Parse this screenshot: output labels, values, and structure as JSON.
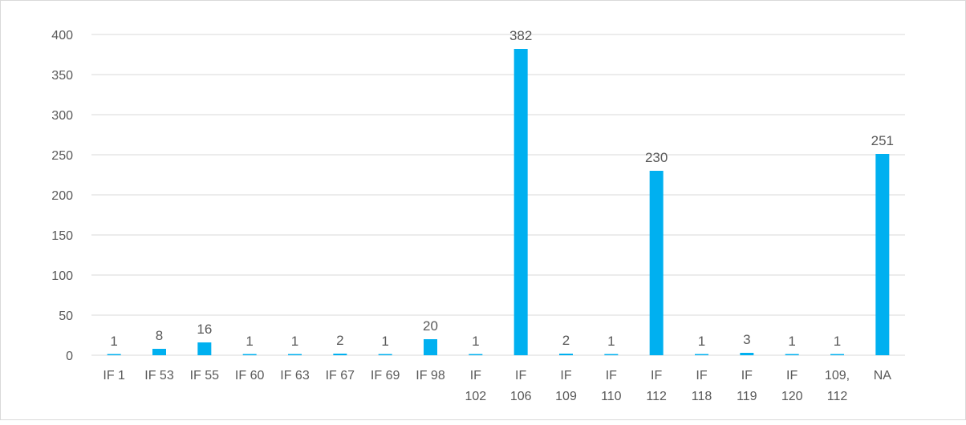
{
  "chart_data": {
    "type": "bar",
    "title": "",
    "xlabel": "",
    "ylabel": "",
    "ylim": [
      0,
      400
    ],
    "yticks": [
      "0",
      "50",
      "100",
      "150",
      "200",
      "250",
      "300",
      "350",
      "400"
    ],
    "grid": true,
    "legend": "none",
    "bar_color": "#00B0F0",
    "categories": [
      [
        "IF 1"
      ],
      [
        "IF 53"
      ],
      [
        "IF 55"
      ],
      [
        "IF 60"
      ],
      [
        "IF 63"
      ],
      [
        "IF 67"
      ],
      [
        "IF 69"
      ],
      [
        "IF 98"
      ],
      [
        "IF",
        "102"
      ],
      [
        "IF",
        "106"
      ],
      [
        "IF",
        "109"
      ],
      [
        "IF",
        "110"
      ],
      [
        "IF",
        "112"
      ],
      [
        "IF",
        "118"
      ],
      [
        "IF",
        "119"
      ],
      [
        "IF",
        "120"
      ],
      [
        "109,",
        "112"
      ],
      [
        "NA"
      ]
    ],
    "values": [
      1,
      8,
      16,
      1,
      1,
      2,
      1,
      20,
      1,
      382,
      2,
      1,
      230,
      1,
      3,
      1,
      1,
      251
    ],
    "data_labels": [
      "1",
      "8",
      "16",
      "1",
      "1",
      "2",
      "1",
      "20",
      "1",
      "382",
      "2",
      "1",
      "230",
      "1",
      "3",
      "1",
      "1",
      "251"
    ]
  }
}
